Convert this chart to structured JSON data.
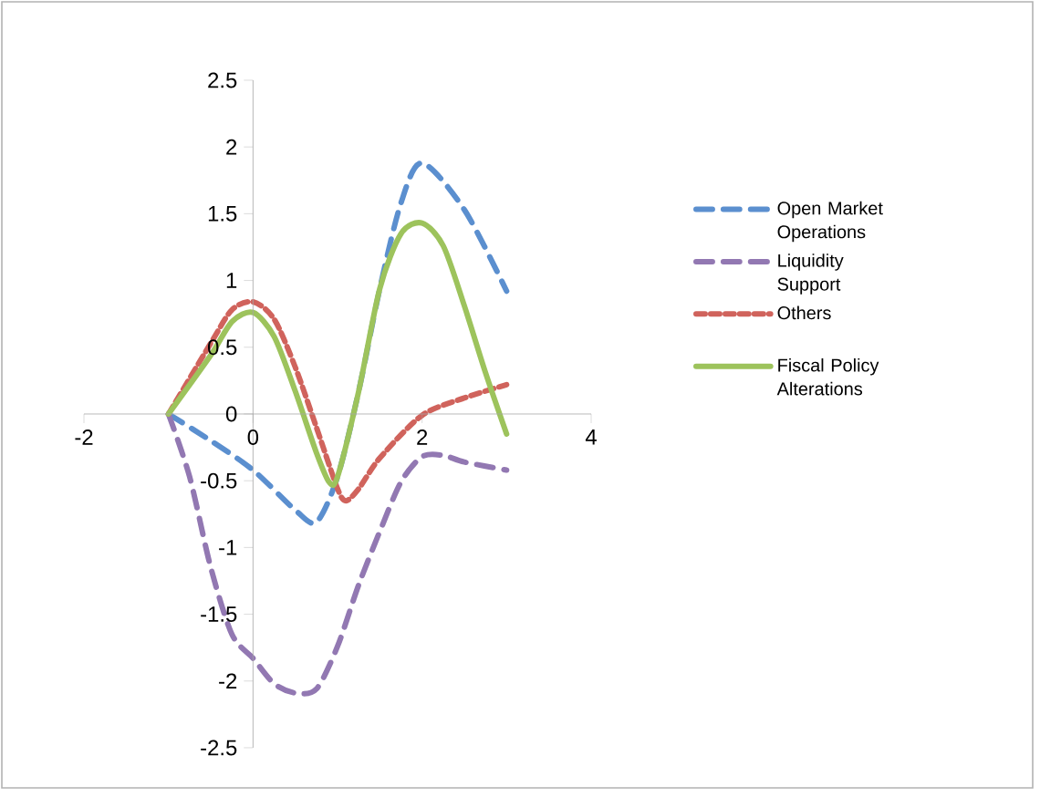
{
  "chart_data": {
    "type": "line",
    "xlim": [
      -2,
      4
    ],
    "xticks": [
      -2,
      0,
      2,
      4
    ],
    "ylim": [
      -2.5,
      2.5
    ],
    "yticks": [
      -2.5,
      -2,
      -1.5,
      -1,
      -0.5,
      0,
      0.5,
      1,
      1.5,
      2,
      2.5
    ],
    "legend": "right",
    "grid": false,
    "marker": "none",
    "series": [
      {
        "name": "Open Market Operations",
        "color": "#5b8fcf",
        "line_style": "dashed",
        "x": [
          -1,
          -0.5,
          0,
          0.5,
          0.75,
          1,
          1.25,
          1.5,
          1.75,
          2,
          2.5,
          3
        ],
        "values": [
          0,
          -0.2,
          -0.42,
          -0.72,
          -0.81,
          -0.47,
          0.17,
          0.94,
          1.58,
          1.88,
          1.53,
          0.92
        ]
      },
      {
        "name": "Liquidity Support",
        "color": "#9278b2",
        "line_style": "dashed",
        "x": [
          -1,
          -0.75,
          -0.5,
          -0.25,
          0,
          0.25,
          0.5,
          0.75,
          1,
          1.25,
          1.5,
          1.75,
          2,
          2.25,
          2.5,
          3
        ],
        "values": [
          0,
          -0.47,
          -1.15,
          -1.65,
          -1.83,
          -2.02,
          -2.09,
          -2.06,
          -1.74,
          -1.28,
          -0.88,
          -0.51,
          -0.32,
          -0.31,
          -0.36,
          -0.42
        ]
      },
      {
        "name": "Others",
        "color": "#d0635c",
        "line_style": "dotted",
        "x": [
          -1,
          -0.5,
          -0.25,
          0,
          0.25,
          0.5,
          0.75,
          1,
          1.1,
          1.25,
          1.5,
          2,
          2.5,
          3
        ],
        "values": [
          0,
          0.53,
          0.78,
          0.84,
          0.71,
          0.35,
          -0.1,
          -0.56,
          -0.65,
          -0.56,
          -0.33,
          -0.01,
          0.12,
          0.22
        ]
      },
      {
        "name": "Fiscal Policy Alterations",
        "color": "#9dc35c",
        "line_style": "solid",
        "x": [
          -1,
          -0.5,
          -0.25,
          0,
          0.25,
          0.5,
          0.75,
          0.9,
          1,
          1.25,
          1.5,
          1.75,
          2,
          2.25,
          2.5,
          2.75,
          3
        ],
        "values": [
          0,
          0.44,
          0.69,
          0.76,
          0.58,
          0.17,
          -0.29,
          -0.51,
          -0.47,
          0.17,
          0.94,
          1.35,
          1.43,
          1.26,
          0.81,
          0.31,
          -0.15
        ]
      }
    ]
  }
}
